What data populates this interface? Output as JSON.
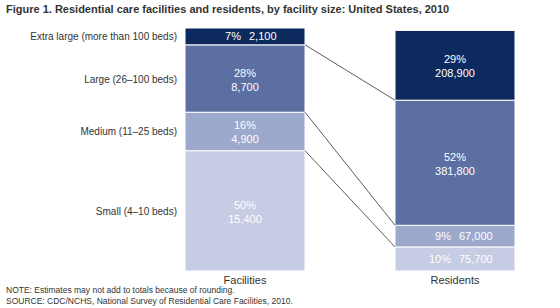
{
  "chart_data": {
    "type": "bar",
    "stacked": true,
    "data_labels": true,
    "tick_labels": "x",
    "title": "Figure 1. Residential care facilities and residents, by facility size: United States, 2010",
    "note": "NOTE: Estimates may not add to totals because of rounding.",
    "source": "SOURCE: CDC/NCHS, National Survey of Residential Care Facilities, 2010.",
    "categories": [
      "Facilities",
      "Residents"
    ],
    "ylim": [
      0,
      101
    ],
    "series": [
      {
        "name": "Small (4–10 beds)",
        "color": "#c5cce3",
        "values": [
          50,
          10
        ],
        "value_labels": [
          "50%",
          "10%"
        ],
        "counts": [
          15400,
          75700
        ]
      },
      {
        "name": "Medium (11–25 beds)",
        "color": "#9ca8cc",
        "values": [
          16,
          9
        ],
        "value_labels": [
          "16%",
          "9%"
        ],
        "counts": [
          4900,
          67000
        ]
      },
      {
        "name": "Large (26–100 beds)",
        "color": "#5b6fa3",
        "values": [
          28,
          52
        ],
        "value_labels": [
          "28%",
          "52%"
        ],
        "counts": [
          8700,
          381800
        ]
      },
      {
        "name": "Extra large (more than 100 beds)",
        "color": "#0d2a5e",
        "values": [
          7,
          29
        ],
        "value_labels": [
          "7%",
          "29%"
        ],
        "counts": [
          2100,
          208900
        ]
      }
    ]
  }
}
